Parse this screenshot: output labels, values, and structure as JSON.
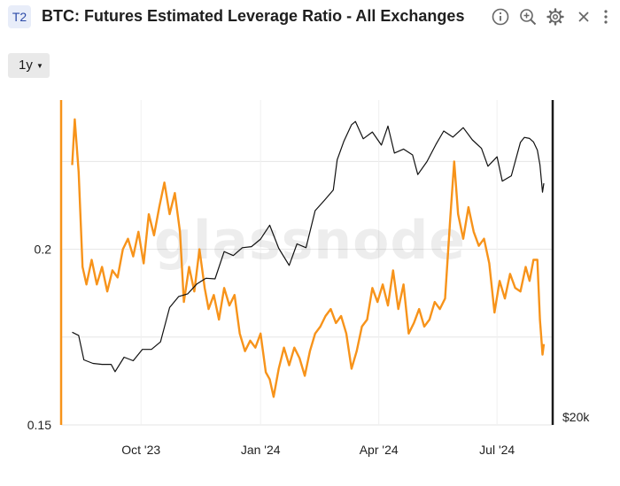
{
  "header": {
    "badge": "T2",
    "title": "BTC: Futures Estimated Leverage Ratio - All Exchanges",
    "tools": [
      "info-icon",
      "zoom-icon",
      "gear-icon",
      "close-icon",
      "more-icon"
    ]
  },
  "range": {
    "label": "1y"
  },
  "watermark": "glassnode",
  "colors": {
    "leverage": "#f7931a",
    "price": "#111111",
    "grid": "#e6e6e6",
    "axis": "#1a1a1a"
  },
  "chart_data": {
    "type": "line",
    "title": "BTC: Futures Estimated Leverage Ratio - All Exchanges",
    "legend": "none",
    "grid": true,
    "x_range": [
      "2023-08-08",
      "2024-08-06"
    ],
    "x_ticks": [
      {
        "date": "2023-10-01",
        "label": "Oct '23"
      },
      {
        "date": "2024-01-01",
        "label": "Jan '24"
      },
      {
        "date": "2024-04-01",
        "label": "Apr '24"
      },
      {
        "date": "2024-07-01",
        "label": "Jul '24"
      }
    ],
    "y_left": {
      "ticks": [
        {
          "value": 0.15,
          "label": "0.15"
        },
        {
          "value": 0.2,
          "label": "0.2"
        }
      ],
      "range": [
        0.15,
        0.2425
      ]
    },
    "y_right": {
      "scale": "log",
      "ticks": [
        {
          "value": 20000,
          "label": "$20k"
        }
      ],
      "range": [
        20000,
        80000
      ]
    },
    "series": [
      {
        "axis": "left",
        "color": "#f7931a",
        "points": [
          [
            "2023-08-09",
            0.224
          ],
          [
            "2023-08-11",
            0.237
          ],
          [
            "2023-08-14",
            0.222
          ],
          [
            "2023-08-17",
            0.195
          ],
          [
            "2023-08-20",
            0.19
          ],
          [
            "2023-08-24",
            0.197
          ],
          [
            "2023-08-28",
            0.19
          ],
          [
            "2023-09-01",
            0.195
          ],
          [
            "2023-09-05",
            0.188
          ],
          [
            "2023-09-09",
            0.194
          ],
          [
            "2023-09-13",
            0.192
          ],
          [
            "2023-09-17",
            0.2
          ],
          [
            "2023-09-21",
            0.203
          ],
          [
            "2023-09-25",
            0.198
          ],
          [
            "2023-09-29",
            0.205
          ],
          [
            "2023-10-03",
            0.196
          ],
          [
            "2023-10-07",
            0.21
          ],
          [
            "2023-10-11",
            0.204
          ],
          [
            "2023-10-15",
            0.212
          ],
          [
            "2023-10-19",
            0.219
          ],
          [
            "2023-10-23",
            0.21
          ],
          [
            "2023-10-27",
            0.216
          ],
          [
            "2023-10-31",
            0.205
          ],
          [
            "2023-11-03",
            0.185
          ],
          [
            "2023-11-07",
            0.195
          ],
          [
            "2023-11-11",
            0.188
          ],
          [
            "2023-11-15",
            0.2
          ],
          [
            "2023-11-19",
            0.189
          ],
          [
            "2023-11-22",
            0.183
          ],
          [
            "2023-11-26",
            0.187
          ],
          [
            "2023-11-30",
            0.18
          ],
          [
            "2023-12-04",
            0.189
          ],
          [
            "2023-12-08",
            0.184
          ],
          [
            "2023-12-12",
            0.187
          ],
          [
            "2023-12-16",
            0.176
          ],
          [
            "2023-12-20",
            0.171
          ],
          [
            "2023-12-24",
            0.174
          ],
          [
            "2023-12-28",
            0.172
          ],
          [
            "2024-01-01",
            0.176
          ],
          [
            "2024-01-05",
            0.165
          ],
          [
            "2024-01-08",
            0.163
          ],
          [
            "2024-01-11",
            0.158
          ],
          [
            "2024-01-15",
            0.166
          ],
          [
            "2024-01-19",
            0.172
          ],
          [
            "2024-01-23",
            0.167
          ],
          [
            "2024-01-27",
            0.172
          ],
          [
            "2024-01-31",
            0.169
          ],
          [
            "2024-02-04",
            0.164
          ],
          [
            "2024-02-08",
            0.171
          ],
          [
            "2024-02-12",
            0.176
          ],
          [
            "2024-02-16",
            0.178
          ],
          [
            "2024-02-20",
            0.181
          ],
          [
            "2024-02-24",
            0.183
          ],
          [
            "2024-02-28",
            0.179
          ],
          [
            "2024-03-03",
            0.181
          ],
          [
            "2024-03-07",
            0.176
          ],
          [
            "2024-03-11",
            0.166
          ],
          [
            "2024-03-15",
            0.171
          ],
          [
            "2024-03-19",
            0.178
          ],
          [
            "2024-03-23",
            0.18
          ],
          [
            "2024-03-27",
            0.189
          ],
          [
            "2024-03-31",
            0.185
          ],
          [
            "2024-04-04",
            0.19
          ],
          [
            "2024-04-08",
            0.184
          ],
          [
            "2024-04-12",
            0.194
          ],
          [
            "2024-04-16",
            0.183
          ],
          [
            "2024-04-20",
            0.19
          ],
          [
            "2024-04-24",
            0.176
          ],
          [
            "2024-04-28",
            0.179
          ],
          [
            "2024-05-02",
            0.183
          ],
          [
            "2024-05-06",
            0.178
          ],
          [
            "2024-05-10",
            0.18
          ],
          [
            "2024-05-14",
            0.185
          ],
          [
            "2024-05-18",
            0.183
          ],
          [
            "2024-05-22",
            0.186
          ],
          [
            "2024-05-26",
            0.209
          ],
          [
            "2024-05-29",
            0.225
          ],
          [
            "2024-06-01",
            0.21
          ],
          [
            "2024-06-05",
            0.203
          ],
          [
            "2024-06-09",
            0.212
          ],
          [
            "2024-06-13",
            0.205
          ],
          [
            "2024-06-17",
            0.201
          ],
          [
            "2024-06-21",
            0.203
          ],
          [
            "2024-06-25",
            0.196
          ],
          [
            "2024-06-29",
            0.182
          ],
          [
            "2024-07-03",
            0.191
          ],
          [
            "2024-07-07",
            0.186
          ],
          [
            "2024-07-11",
            0.193
          ],
          [
            "2024-07-15",
            0.189
          ],
          [
            "2024-07-19",
            0.188
          ],
          [
            "2024-07-23",
            0.195
          ],
          [
            "2024-07-26",
            0.191
          ],
          [
            "2024-07-29",
            0.197
          ],
          [
            "2024-08-01",
            0.197
          ],
          [
            "2024-08-03",
            0.18
          ],
          [
            "2024-08-04",
            0.175
          ],
          [
            "2024-08-05",
            0.17
          ],
          [
            "2024-08-06",
            0.173
          ]
        ]
      },
      {
        "axis": "right",
        "color": "#111111",
        "points": [
          [
            "2023-08-09",
            29700
          ],
          [
            "2023-08-14",
            29300
          ],
          [
            "2023-08-18",
            26400
          ],
          [
            "2023-08-25",
            26000
          ],
          [
            "2023-09-01",
            25900
          ],
          [
            "2023-09-08",
            25900
          ],
          [
            "2023-09-11",
            25100
          ],
          [
            "2023-09-18",
            26700
          ],
          [
            "2023-09-25",
            26300
          ],
          [
            "2023-10-02",
            27600
          ],
          [
            "2023-10-09",
            27600
          ],
          [
            "2023-10-16",
            28500
          ],
          [
            "2023-10-23",
            33000
          ],
          [
            "2023-10-30",
            34600
          ],
          [
            "2023-11-06",
            35000
          ],
          [
            "2023-11-13",
            36500
          ],
          [
            "2023-11-20",
            37400
          ],
          [
            "2023-11-27",
            37300
          ],
          [
            "2023-12-04",
            41900
          ],
          [
            "2023-12-11",
            41200
          ],
          [
            "2023-12-18",
            42600
          ],
          [
            "2023-12-25",
            42800
          ],
          [
            "2024-01-01",
            44200
          ],
          [
            "2024-01-08",
            46900
          ],
          [
            "2024-01-15",
            42500
          ],
          [
            "2024-01-23",
            39500
          ],
          [
            "2024-01-29",
            43300
          ],
          [
            "2024-02-05",
            42600
          ],
          [
            "2024-02-12",
            49900
          ],
          [
            "2024-02-19",
            52100
          ],
          [
            "2024-02-26",
            54500
          ],
          [
            "2024-02-29",
            62000
          ],
          [
            "2024-03-05",
            67000
          ],
          [
            "2024-03-11",
            72000
          ],
          [
            "2024-03-14",
            73000
          ],
          [
            "2024-03-20",
            67800
          ],
          [
            "2024-03-27",
            69800
          ],
          [
            "2024-04-03",
            66000
          ],
          [
            "2024-04-08",
            71600
          ],
          [
            "2024-04-13",
            63800
          ],
          [
            "2024-04-20",
            64900
          ],
          [
            "2024-04-27",
            63300
          ],
          [
            "2024-05-01",
            58200
          ],
          [
            "2024-05-08",
            61500
          ],
          [
            "2024-05-15",
            66200
          ],
          [
            "2024-05-21",
            70100
          ],
          [
            "2024-05-28",
            68300
          ],
          [
            "2024-06-05",
            71100
          ],
          [
            "2024-06-12",
            67500
          ],
          [
            "2024-06-19",
            65100
          ],
          [
            "2024-06-24",
            60300
          ],
          [
            "2024-07-01",
            62800
          ],
          [
            "2024-07-05",
            56600
          ],
          [
            "2024-07-12",
            57900
          ],
          [
            "2024-07-19",
            66800
          ],
          [
            "2024-07-22",
            68200
          ],
          [
            "2024-07-26",
            67900
          ],
          [
            "2024-07-29",
            66900
          ],
          [
            "2024-08-01",
            64600
          ],
          [
            "2024-08-03",
            60700
          ],
          [
            "2024-08-05",
            54000
          ],
          [
            "2024-08-06",
            56100
          ]
        ]
      }
    ]
  }
}
